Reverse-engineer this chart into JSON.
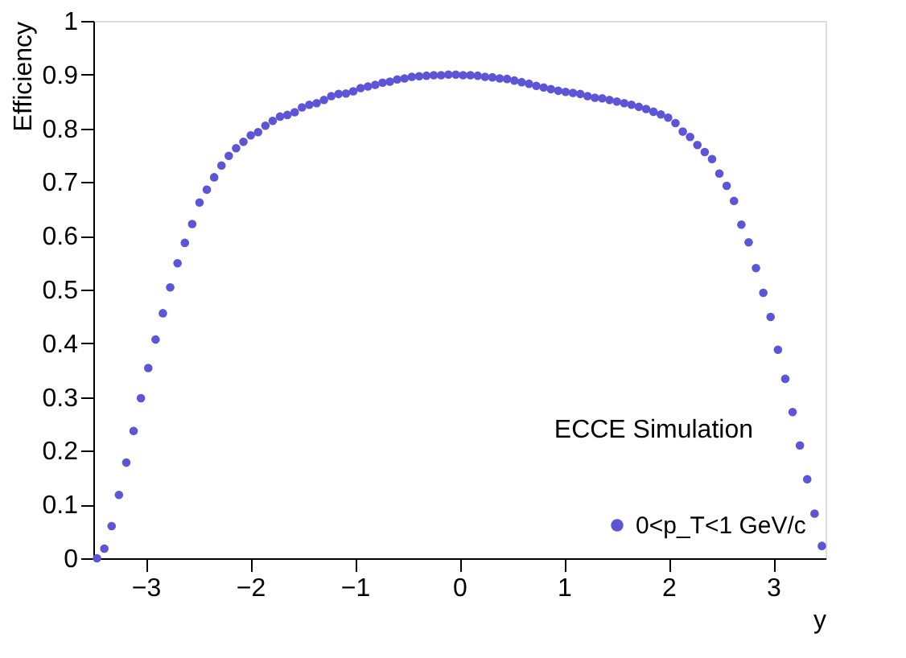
{
  "chart_data": {
    "type": "scatter",
    "xlabel": "y",
    "ylabel": "Efficiency",
    "x": [
      -3.465,
      -3.395,
      -3.325,
      -3.255,
      -3.185,
      -3.115,
      -3.045,
      -2.975,
      -2.905,
      -2.835,
      -2.765,
      -2.695,
      -2.625,
      -2.555,
      -2.485,
      -2.415,
      -2.345,
      -2.275,
      -2.205,
      -2.135,
      -2.065,
      -1.995,
      -1.925,
      -1.855,
      -1.785,
      -1.715,
      -1.645,
      -1.575,
      -1.505,
      -1.435,
      -1.365,
      -1.295,
      -1.225,
      -1.155,
      -1.085,
      -1.015,
      -0.945,
      -0.875,
      -0.805,
      -0.735,
      -0.665,
      -0.595,
      -0.525,
      -0.455,
      -0.385,
      -0.315,
      -0.245,
      -0.175,
      -0.105,
      -0.035,
      0.035,
      0.105,
      0.175,
      0.245,
      0.315,
      0.385,
      0.455,
      0.525,
      0.595,
      0.665,
      0.735,
      0.805,
      0.875,
      0.945,
      1.015,
      1.085,
      1.155,
      1.225,
      1.295,
      1.365,
      1.435,
      1.505,
      1.575,
      1.645,
      1.715,
      1.785,
      1.855,
      1.925,
      1.995,
      2.065,
      2.135,
      2.205,
      2.275,
      2.345,
      2.415,
      2.485,
      2.555,
      2.625,
      2.695,
      2.765,
      2.835,
      2.905,
      2.975,
      3.045,
      3.115,
      3.185,
      3.255,
      3.325,
      3.395,
      3.465
    ],
    "series": [
      {
        "name": "0<p_T<1 GeV/c",
        "color": "#5c55d8",
        "values": [
          0.0,
          0.018,
          0.06,
          0.118,
          0.178,
          0.237,
          0.298,
          0.354,
          0.407,
          0.456,
          0.504,
          0.549,
          0.587,
          0.622,
          0.662,
          0.686,
          0.709,
          0.731,
          0.749,
          0.763,
          0.775,
          0.787,
          0.793,
          0.805,
          0.814,
          0.822,
          0.825,
          0.83,
          0.839,
          0.844,
          0.847,
          0.853,
          0.86,
          0.864,
          0.865,
          0.869,
          0.875,
          0.878,
          0.881,
          0.885,
          0.887,
          0.891,
          0.893,
          0.896,
          0.897,
          0.898,
          0.899,
          0.899,
          0.9,
          0.9,
          0.899,
          0.899,
          0.898,
          0.896,
          0.895,
          0.893,
          0.892,
          0.889,
          0.886,
          0.883,
          0.879,
          0.876,
          0.873,
          0.87,
          0.868,
          0.866,
          0.864,
          0.86,
          0.857,
          0.856,
          0.853,
          0.85,
          0.847,
          0.844,
          0.84,
          0.836,
          0.831,
          0.826,
          0.82,
          0.81,
          0.794,
          0.784,
          0.769,
          0.756,
          0.743,
          0.716,
          0.693,
          0.665,
          0.621,
          0.588,
          0.54,
          0.494,
          0.449,
          0.388,
          0.334,
          0.272,
          0.21,
          0.147,
          0.083,
          0.023
        ]
      }
    ],
    "xlim": [
      -3.5,
      3.5
    ],
    "xticks": [
      -3,
      -2,
      -1,
      0,
      1,
      2,
      3
    ],
    "ylim": [
      0,
      1
    ],
    "yticks": [
      0,
      0.1,
      0.2,
      0.3,
      0.4,
      0.5,
      0.6,
      0.7,
      0.8,
      0.9,
      1
    ],
    "annotations": [
      "ECCE Simulation"
    ],
    "legend": "bottom right",
    "marker": "circle",
    "grid": false
  }
}
